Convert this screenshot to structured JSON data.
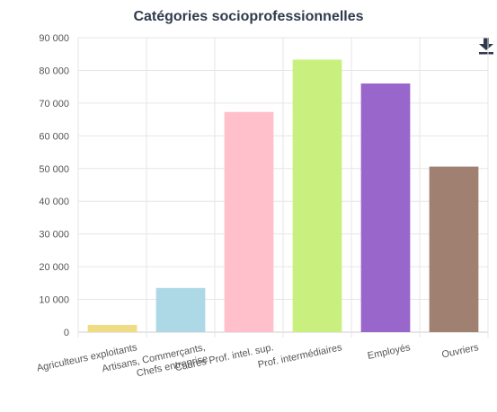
{
  "chart_data": {
    "type": "bar",
    "title": "Catégories socioprofessionnelles",
    "xlabel": "",
    "ylabel": "",
    "ylim": [
      0,
      90000
    ],
    "yticks": [
      {
        "value": 0,
        "label": "0"
      },
      {
        "value": 10000,
        "label": "10 000"
      },
      {
        "value": 20000,
        "label": "20 000"
      },
      {
        "value": 30000,
        "label": "30 000"
      },
      {
        "value": 40000,
        "label": "40 000"
      },
      {
        "value": 50000,
        "label": "50 000"
      },
      {
        "value": 60000,
        "label": "60 000"
      },
      {
        "value": 70000,
        "label": "70 000"
      },
      {
        "value": 80000,
        "label": "80 000"
      },
      {
        "value": 90000,
        "label": "90 000"
      }
    ],
    "grid": true,
    "categories": [
      "Agriculteurs exploitants",
      "Artisans, Commerçants, Chefs entreprise",
      "Cadres Prof. intel. sup.",
      "Prof. intermédiaires",
      "Employés",
      "Ouvriers"
    ],
    "category_lines": [
      [
        "Agriculteurs exploitants"
      ],
      [
        "Artisans, Commerçants,",
        "Chefs entreprise"
      ],
      [
        "Cadres Prof. intel. sup."
      ],
      [
        "Prof. intermédiaires"
      ],
      [
        "Employés"
      ],
      [
        "Ouvriers"
      ]
    ],
    "values": [
      2200,
      13500,
      67300,
      83300,
      76000,
      50600
    ],
    "colors": [
      "#f0dc82",
      "#add8e6",
      "#ffc0cb",
      "#c9f07e",
      "#9966cc",
      "#a08070"
    ]
  },
  "toolbar": {
    "download_icon": "download-icon"
  }
}
